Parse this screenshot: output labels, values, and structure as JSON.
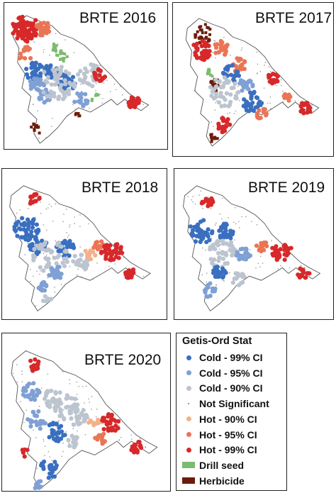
{
  "panels": [
    {
      "id": "p2016",
      "title": "BRTE 2016"
    },
    {
      "id": "p2017",
      "title": "BRTE 2017"
    },
    {
      "id": "p2018",
      "title": "BRTE 2018"
    },
    {
      "id": "p2019",
      "title": "BRTE 2019"
    },
    {
      "id": "p2020",
      "title": "BRTE 2020"
    }
  ],
  "legend": {
    "title": "Getis-Ord Stat",
    "items": [
      {
        "label": "Cold - 99% CI",
        "color": "#3a6fc0",
        "symbol": "dot"
      },
      {
        "label": "Cold - 95% CI",
        "color": "#7fa0d4",
        "symbol": "dot"
      },
      {
        "label": "Cold - 90% CI",
        "color": "#bcc4cf",
        "symbol": "dot"
      },
      {
        "label": "Not Significant",
        "color": "#999999",
        "symbol": "tiny"
      },
      {
        "label": "Hot - 90% CI",
        "color": "#f3b08a",
        "symbol": "dot"
      },
      {
        "label": "Hot - 95% CI",
        "color": "#ea7555",
        "symbol": "dot"
      },
      {
        "label": "Hot - 99% CI",
        "color": "#d7282a",
        "symbol": "dot"
      },
      {
        "label": "Drill seed",
        "color": "#7dbb6e",
        "symbol": "square"
      },
      {
        "label": "Herbicide",
        "color": "#6b1c0b",
        "symbol": "square"
      }
    ]
  }
}
